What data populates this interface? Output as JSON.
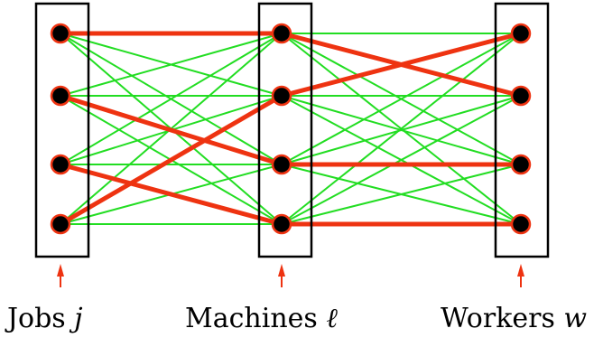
{
  "groups": [
    {
      "key": "jobs",
      "label": "Jobs",
      "var": "j"
    },
    {
      "key": "machines",
      "label": "Machines",
      "var": "ℓ"
    },
    {
      "key": "workers",
      "label": "Workers",
      "var": "w"
    }
  ],
  "nodes_per_group": 4,
  "matching": {
    "jobs_to_machines": [
      [
        0,
        0
      ],
      [
        1,
        2
      ],
      [
        2,
        3
      ],
      [
        3,
        1
      ]
    ],
    "machines_to_workers": [
      [
        0,
        1
      ],
      [
        1,
        0
      ],
      [
        2,
        2
      ],
      [
        3,
        3
      ]
    ]
  },
  "colors": {
    "edge": "#22dd22",
    "matching_edge": "#ee3311",
    "node_fill": "#000000",
    "node_stroke": "#ee3311",
    "box": "#000000",
    "arrow": "#ee3311",
    "text": "#000000"
  }
}
